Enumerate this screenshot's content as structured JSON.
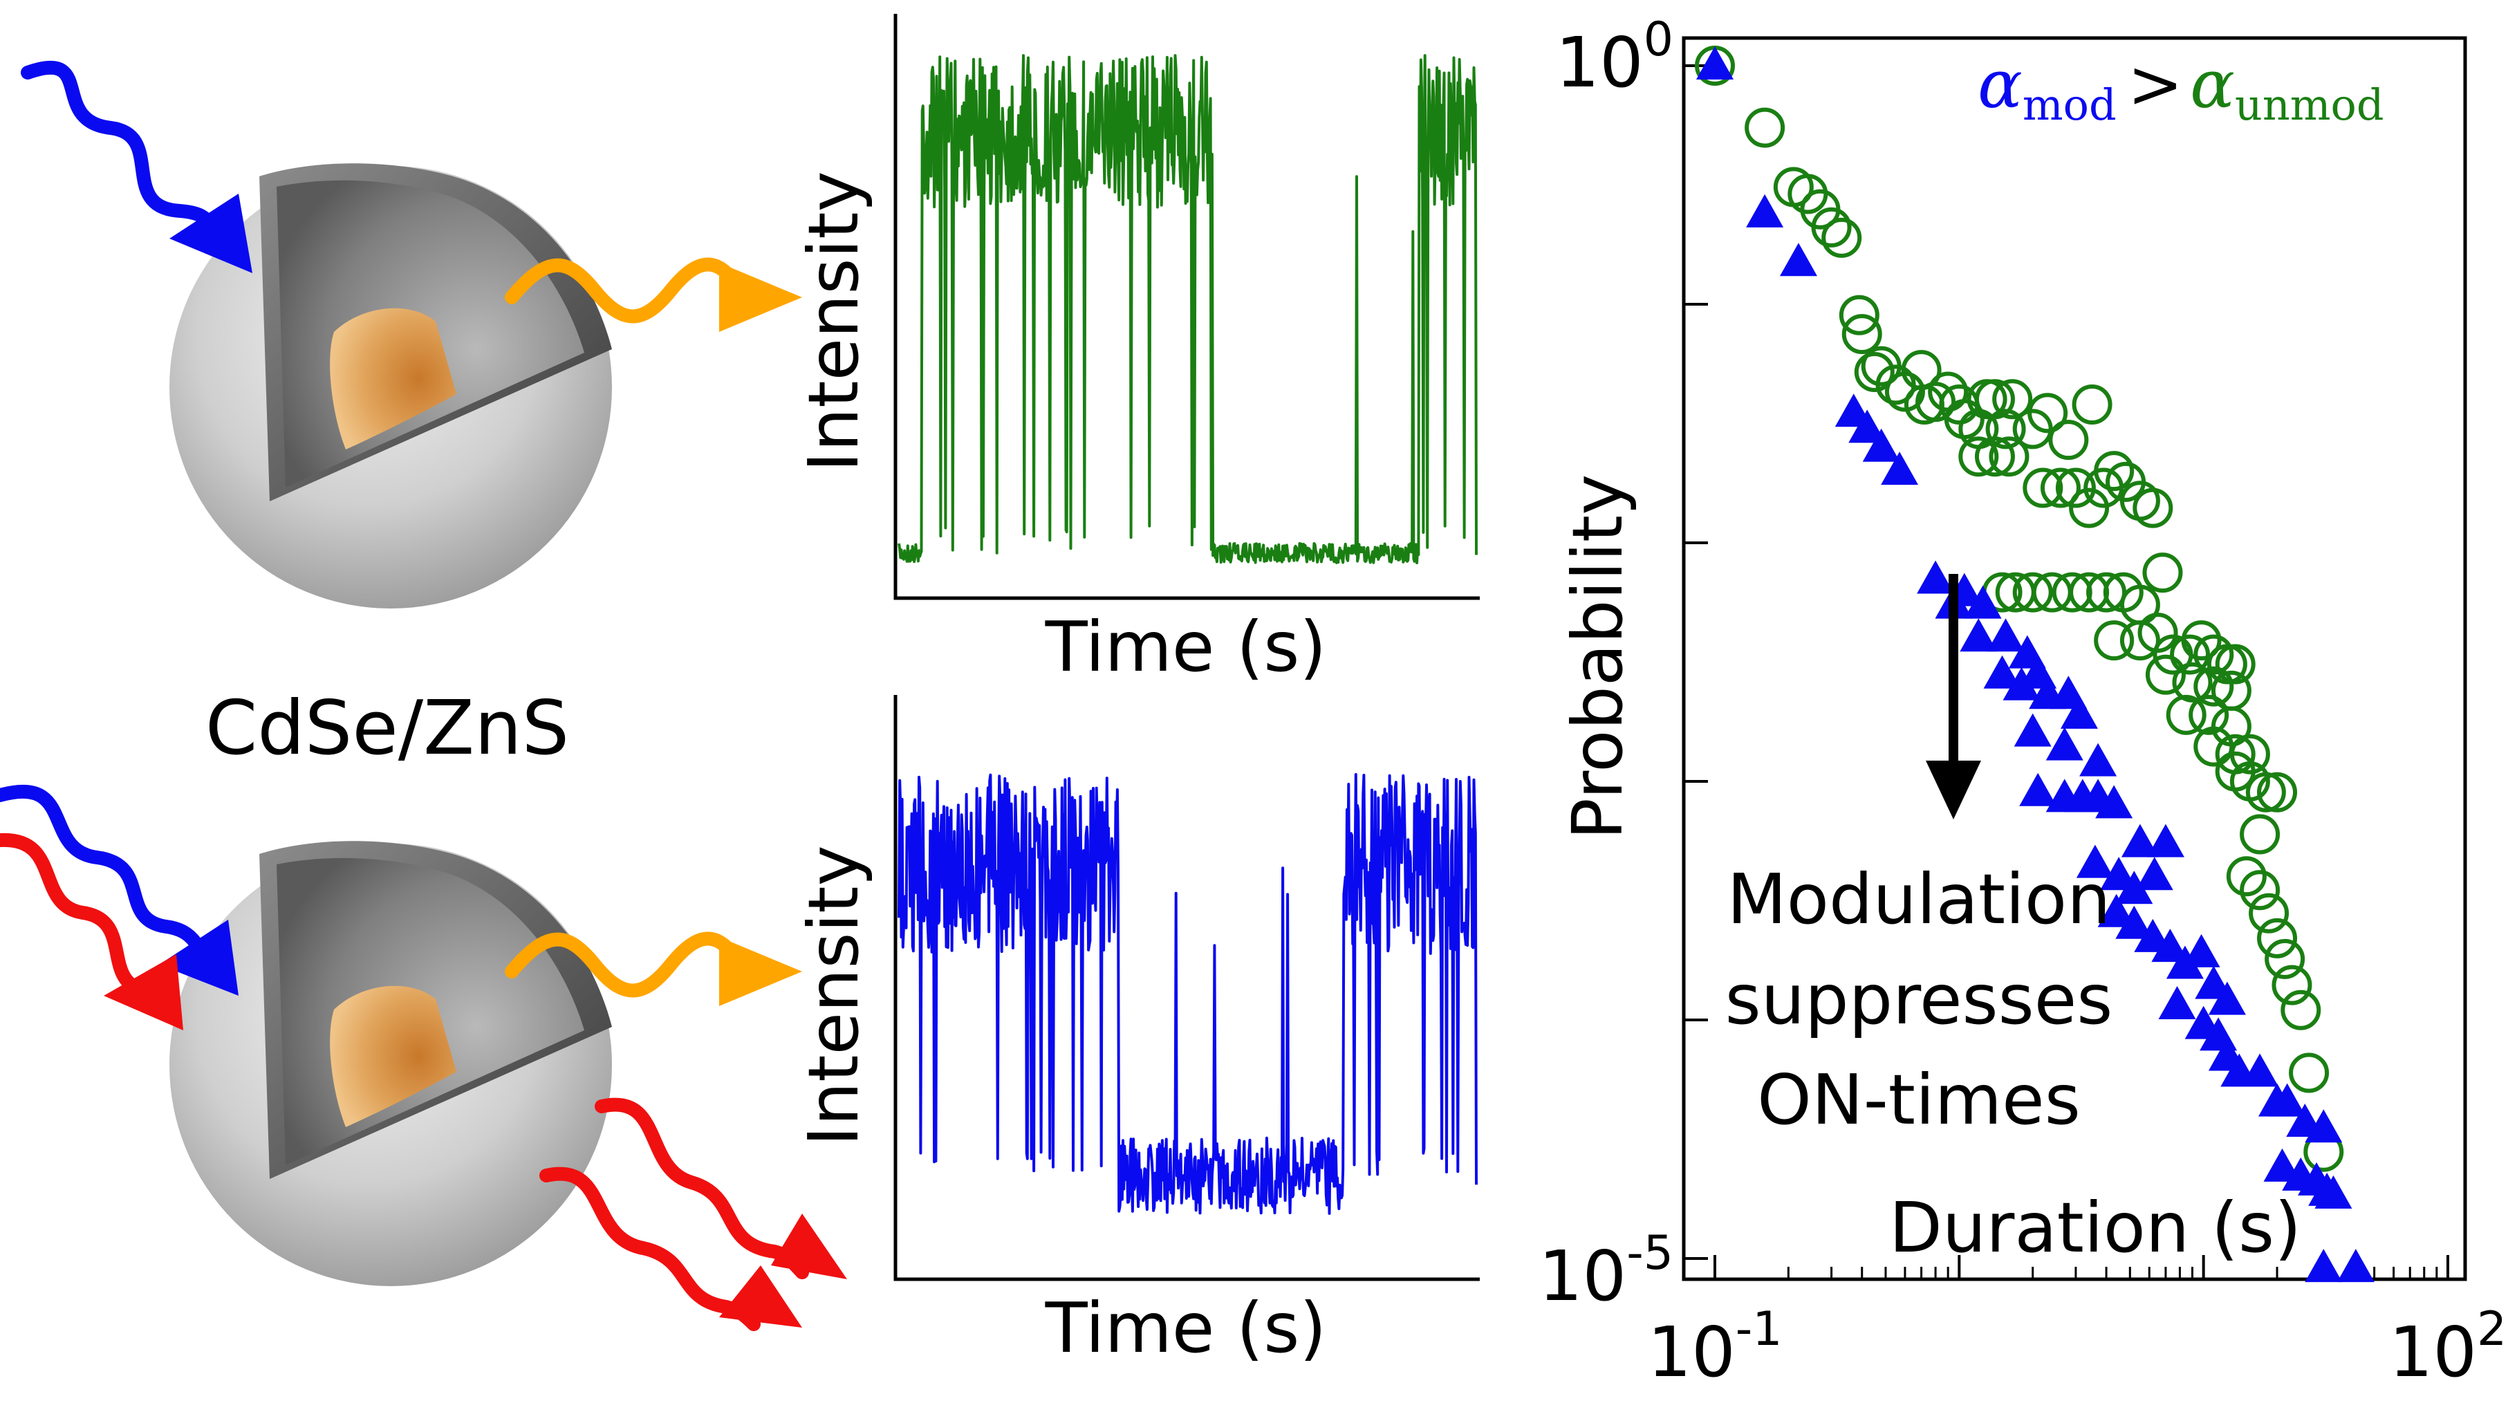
{
  "material_label": "CdSe/ZnS",
  "trace_top": {
    "ylabel": "Intensity",
    "xlabel": "Time (s)",
    "color": "#1a7f12"
  },
  "trace_bottom": {
    "ylabel": "Intensity",
    "xlabel": "Time (s)",
    "color": "#0a0af0"
  },
  "colors": {
    "blue_photon": "#0a0af0",
    "red_photon": "#f01010",
    "orange_photon": "#ffa500",
    "green_series": "#1a7f12",
    "blue_series": "#0a0af0"
  },
  "chart_data": {
    "type": "scatter",
    "xlabel": "Duration (s)",
    "ylabel": "Probability",
    "xscale": "log",
    "yscale": "log",
    "x_tick_labels": [
      {
        "base": "10",
        "exp": "-1"
      },
      {
        "base": "10",
        "exp": "2"
      }
    ],
    "y_tick_labels": [
      {
        "base": "10",
        "exp": "0"
      },
      {
        "base": "10",
        "exp": "-5"
      }
    ],
    "xlim": [
      0.1,
      100
    ],
    "ylim": [
      1e-05,
      1
    ],
    "legend_parts": {
      "a1": "α",
      "s1": "mod",
      "gt": ">",
      "a2": "α",
      "s2": "unmod"
    },
    "annotation": [
      "Modulation",
      "suppresses",
      "ON-times"
    ],
    "series": [
      {
        "name": "α_unmod",
        "marker": "open-circle",
        "color": "#1a7f12",
        "points": [
          [
            0.1,
            1.0
          ],
          [
            0.16,
            0.55
          ],
          [
            0.21,
            0.31
          ],
          [
            0.24,
            0.29
          ],
          [
            0.27,
            0.25
          ],
          [
            0.3,
            0.21
          ],
          [
            0.33,
            0.19
          ],
          [
            0.39,
            0.09
          ],
          [
            0.4,
            0.075
          ],
          [
            0.48,
            0.055
          ],
          [
            0.45,
            0.052
          ],
          [
            0.55,
            0.046
          ],
          [
            0.6,
            0.043
          ],
          [
            0.7,
            0.053
          ],
          [
            0.72,
            0.038
          ],
          [
            0.8,
            0.039
          ],
          [
            0.9,
            0.043
          ],
          [
            1.0,
            0.038
          ],
          [
            1.05,
            0.033
          ],
          [
            1.2,
            0.03
          ],
          [
            1.3,
            0.04
          ],
          [
            1.4,
            0.04
          ],
          [
            1.55,
            0.03
          ],
          [
            1.65,
            0.04
          ],
          [
            1.2,
            0.023
          ],
          [
            1.4,
            0.023
          ],
          [
            1.6,
            0.023
          ],
          [
            2.0,
            0.03
          ],
          [
            2.3,
            0.035
          ],
          [
            2.8,
            0.027
          ],
          [
            3.5,
            0.038
          ],
          [
            2.2,
            0.017
          ],
          [
            2.6,
            0.017
          ],
          [
            3.0,
            0.017
          ],
          [
            3.4,
            0.014
          ],
          [
            3.9,
            0.017
          ],
          [
            4.3,
            0.02
          ],
          [
            4.8,
            0.018
          ],
          [
            5.5,
            0.015
          ],
          [
            6.2,
            0.014
          ],
          [
            1.5,
            0.0062
          ],
          [
            1.7,
            0.0062
          ],
          [
            2.0,
            0.0062
          ],
          [
            2.4,
            0.0062
          ],
          [
            2.9,
            0.0062
          ],
          [
            3.4,
            0.0062
          ],
          [
            4.0,
            0.0062
          ],
          [
            4.7,
            0.0062
          ],
          [
            5.5,
            0.0055
          ],
          [
            6.8,
            0.0075
          ],
          [
            4.3,
            0.0039
          ],
          [
            5.5,
            0.0039
          ],
          [
            6.5,
            0.0042
          ],
          [
            7.5,
            0.0034
          ],
          [
            8.8,
            0.0034
          ],
          [
            9.8,
            0.0039
          ],
          [
            11.0,
            0.0034
          ],
          [
            12.5,
            0.0031
          ],
          [
            13.5,
            0.0031
          ],
          [
            7.0,
            0.0028
          ],
          [
            9.0,
            0.0026
          ],
          [
            11.0,
            0.0025
          ],
          [
            13.0,
            0.0024
          ],
          [
            8.5,
            0.0019
          ],
          [
            10.5,
            0.0019
          ],
          [
            13.0,
            0.0017
          ],
          [
            11.0,
            0.0014
          ],
          [
            13.5,
            0.0013
          ],
          [
            15.5,
            0.0013
          ],
          [
            13.5,
            0.0011
          ],
          [
            15.5,
            0.001
          ],
          [
            18.0,
            0.0009
          ],
          [
            20.0,
            0.0009
          ],
          [
            17.0,
            0.0006
          ],
          [
            15.0,
            0.0004
          ],
          [
            17.0,
            0.00035
          ],
          [
            18.5,
            0.00028
          ],
          [
            20.0,
            0.00022
          ],
          [
            21.5,
            0.00018
          ],
          [
            23.0,
            0.00014
          ],
          [
            25.0,
            0.00011
          ],
          [
            27.0,
            6e-05
          ],
          [
            31.0,
            2.8e-05
          ]
        ]
      },
      {
        "name": "α_mod",
        "marker": "filled-triangle",
        "color": "#0a0af0",
        "points": [
          [
            0.1,
            1.0
          ],
          [
            0.16,
            0.24
          ],
          [
            0.22,
            0.15
          ],
          [
            0.37,
            0.035
          ],
          [
            0.42,
            0.03
          ],
          [
            0.48,
            0.025
          ],
          [
            0.57,
            0.02
          ],
          [
            0.8,
            0.007
          ],
          [
            1.05,
            0.0062
          ],
          [
            1.25,
            0.0055
          ],
          [
            0.95,
            0.0055
          ],
          [
            1.2,
            0.004
          ],
          [
            1.55,
            0.004
          ],
          [
            1.9,
            0.0034
          ],
          [
            1.5,
            0.0028
          ],
          [
            1.8,
            0.0025
          ],
          [
            2.1,
            0.0028
          ],
          [
            2.3,
            0.0023
          ],
          [
            2.8,
            0.0023
          ],
          [
            3.1,
            0.0019
          ],
          [
            2.0,
            0.0016
          ],
          [
            2.7,
            0.0014
          ],
          [
            3.7,
            0.0012
          ],
          [
            2.1,
            0.0009
          ],
          [
            2.7,
            0.00085
          ],
          [
            3.2,
            0.00085
          ],
          [
            3.7,
            0.00085
          ],
          [
            4.3,
            0.0008
          ],
          [
            5.5,
            0.00055
          ],
          [
            7.0,
            0.00055
          ],
          [
            3.6,
            0.00045
          ],
          [
            4.5,
            0.0004
          ],
          [
            5.2,
            0.00035
          ],
          [
            6.3,
            0.0004
          ],
          [
            4.4,
            0.00028
          ],
          [
            5.2,
            0.00025
          ],
          [
            6.2,
            0.00022
          ],
          [
            7.3,
            0.0002
          ],
          [
            8.4,
            0.00017
          ],
          [
            9.8,
            0.00019
          ],
          [
            11.0,
            0.00014
          ],
          [
            12.5,
            0.00012
          ],
          [
            7.8,
            0.000115
          ],
          [
            10.0,
            9.5e-05
          ],
          [
            11.5,
            8.5e-05
          ],
          [
            12.5,
            7e-05
          ],
          [
            14.0,
            6e-05
          ],
          [
            17.0,
            6e-05
          ],
          [
            20.0,
            4.5e-05
          ],
          [
            22.0,
            4.5e-05
          ],
          [
            26.0,
            3.7e-05
          ],
          [
            31.0,
            3.5e-05
          ],
          [
            21.0,
            2.4e-05
          ],
          [
            25.0,
            2.2e-05
          ],
          [
            29.0,
            2.1e-05
          ],
          [
            32.0,
            1.9e-05
          ],
          [
            34.0,
            1.85e-05
          ],
          [
            31.0,
            9.1e-06
          ],
          [
            42.0,
            9.1e-06
          ]
        ]
      }
    ]
  }
}
